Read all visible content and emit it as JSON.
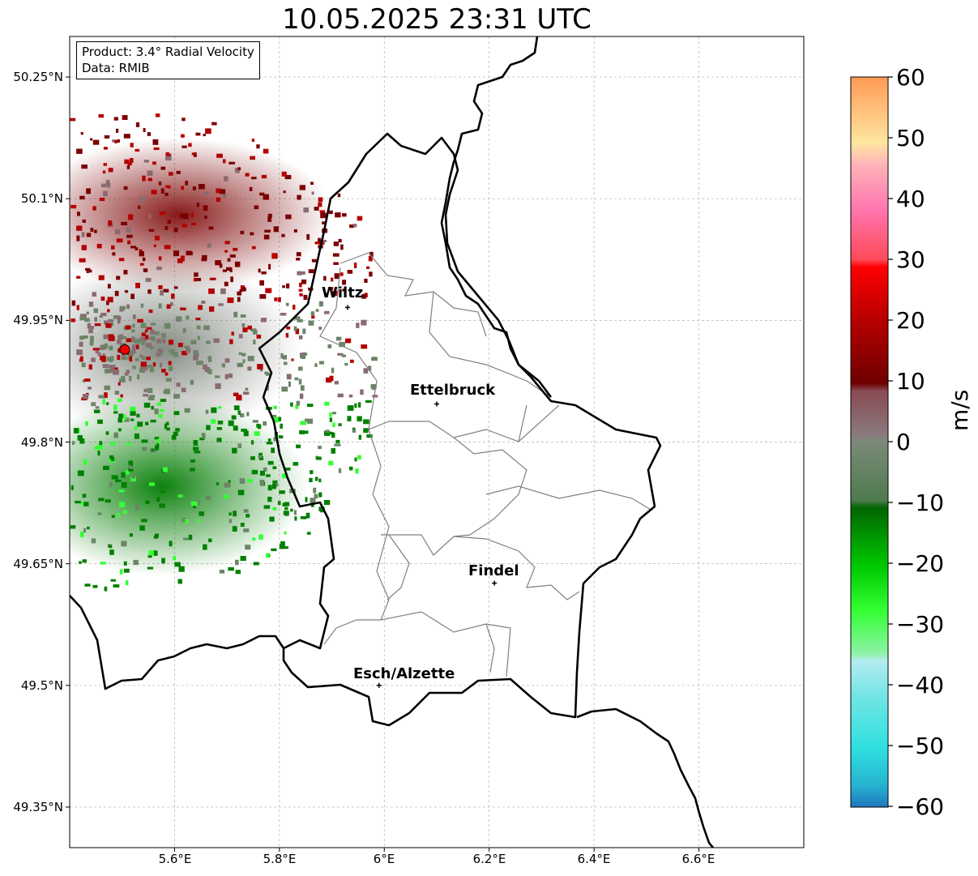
{
  "title": "10.05.2025 23:31 UTC",
  "info": {
    "product": "Product: 3.4° Radial Velocity",
    "source": "Data: RMIB"
  },
  "axes": {
    "lat_ticks": [
      "50.25°N",
      "50.1°N",
      "49.95°N",
      "49.8°N",
      "49.65°N",
      "49.5°N",
      "49.35°N"
    ],
    "lon_ticks": [
      "5.6°E",
      "5.8°E",
      "6°E",
      "6.2°E",
      "6.4°E",
      "6.6°E"
    ],
    "lat_range": [
      49.3,
      50.3
    ],
    "lon_range": [
      5.4,
      6.8
    ],
    "grid": true
  },
  "cities": [
    {
      "name": "Wiltz",
      "lon": 5.93,
      "lat": 49.966
    },
    {
      "name": "Ettelbruck",
      "lon": 6.1,
      "lat": 49.847
    },
    {
      "name": "Findel",
      "lon": 6.21,
      "lat": 49.626
    },
    {
      "name": "Esch/Alzette",
      "lon": 5.99,
      "lat": 49.5
    }
  ],
  "radar_site": {
    "lon": 5.505,
    "lat": 49.914
  },
  "colorbar": {
    "label": "m/s",
    "ticks": [
      "60",
      "50",
      "40",
      "30",
      "20",
      "10",
      "0",
      "−10",
      "−20",
      "−30",
      "−40",
      "−50",
      "−60"
    ],
    "range": [
      -60,
      60
    ]
  },
  "colors": {
    "border": "#000000",
    "districts": "#808080",
    "outbound_dark": "#7a0000",
    "outbound": "#b30000",
    "near_zero_pos": "#8a6b72",
    "near_zero_neg": "#6b8566",
    "inbound": "#008000",
    "inbound_light": "#33ff33",
    "radar_marker": "#ee0000"
  }
}
